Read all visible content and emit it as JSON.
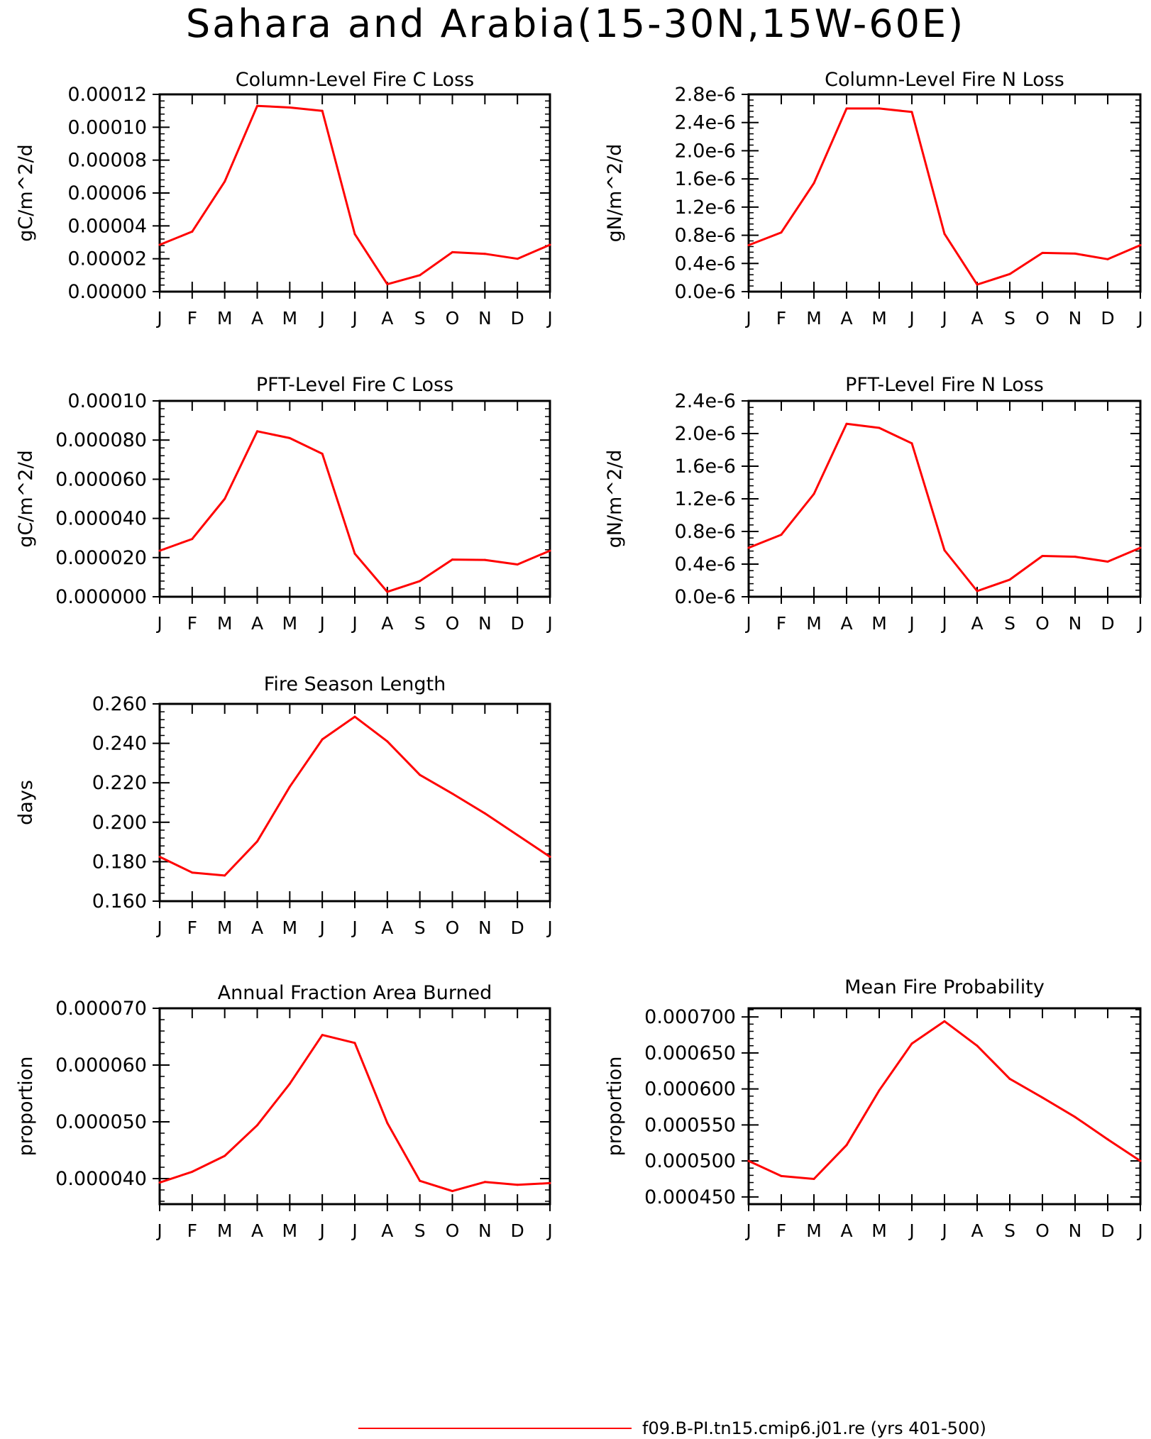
{
  "page_title": "Sahara and Arabia(15-30N,15W-60E)",
  "legend": {
    "label": "f09.B-PI.tn15.cmip6.j01.re (yrs 401-500)",
    "color": "#ff0000"
  },
  "chart_data": [
    {
      "id": "col-c",
      "type": "line",
      "title": "Column-Level Fire C Loss",
      "ylabel": "gC/m^2/d",
      "categories": [
        "J",
        "F",
        "M",
        "A",
        "M",
        "J",
        "J",
        "A",
        "S",
        "O",
        "N",
        "D",
        "J"
      ],
      "yticks": [
        "0.00000",
        "0.00002",
        "0.00004",
        "0.00006",
        "0.00008",
        "0.00010",
        "0.00012"
      ],
      "ylim": [
        0,
        0.00012
      ],
      "series": [
        {
          "values": [
            2.85e-05,
            3.65e-05,
            6.7e-05,
            0.000113,
            0.000112,
            0.00011,
            3.5e-05,
            4.5e-06,
            1e-05,
            2.4e-05,
            2.3e-05,
            2e-05,
            2.85e-05
          ]
        }
      ]
    },
    {
      "id": "col-n",
      "type": "line",
      "title": "Column-Level Fire N Loss",
      "ylabel": "gN/m^2/d",
      "categories": [
        "J",
        "F",
        "M",
        "A",
        "M",
        "J",
        "J",
        "A",
        "S",
        "O",
        "N",
        "D",
        "J"
      ],
      "yticks": [
        "0.0e-6",
        "0.4e-6",
        "0.8e-6",
        "1.2e-6",
        "1.6e-6",
        "2.0e-6",
        "2.4e-6",
        "2.8e-6"
      ],
      "ylim": [
        0,
        2.8e-06
      ],
      "series": [
        {
          "values": [
            6.6e-07,
            8.4e-07,
            1.54e-06,
            2.6e-06,
            2.6e-06,
            2.55e-06,
            8.2e-07,
            1e-07,
            2.5e-07,
            5.5e-07,
            5.4e-07,
            4.6e-07,
            6.6e-07
          ]
        }
      ]
    },
    {
      "id": "pft-c",
      "type": "line",
      "title": "PFT-Level Fire C Loss",
      "ylabel": "gC/m^2/d",
      "categories": [
        "J",
        "F",
        "M",
        "A",
        "M",
        "J",
        "J",
        "A",
        "S",
        "O",
        "N",
        "D",
        "J"
      ],
      "yticks": [
        "0.000000",
        "0.000020",
        "0.000040",
        "0.000060",
        "0.000080",
        "0.00010"
      ],
      "ylim": [
        0,
        0.0001
      ],
      "series": [
        {
          "values": [
            2.35e-05,
            2.95e-05,
            5e-05,
            8.45e-05,
            8.1e-05,
            7.3e-05,
            2.2e-05,
            2.5e-06,
            8e-06,
            1.9e-05,
            1.88e-05,
            1.65e-05,
            2.35e-05
          ]
        }
      ]
    },
    {
      "id": "pft-n",
      "type": "line",
      "title": "PFT-Level Fire N Loss",
      "ylabel": "gN/m^2/d",
      "categories": [
        "J",
        "F",
        "M",
        "A",
        "M",
        "J",
        "J",
        "A",
        "S",
        "O",
        "N",
        "D",
        "J"
      ],
      "yticks": [
        "0.0e-6",
        "0.4e-6",
        "0.8e-6",
        "1.2e-6",
        "1.6e-6",
        "2.0e-6",
        "2.4e-6"
      ],
      "ylim": [
        0,
        2.4e-06
      ],
      "series": [
        {
          "values": [
            6e-07,
            7.6e-07,
            1.26e-06,
            2.12e-06,
            2.07e-06,
            1.88e-06,
            5.7e-07,
            7e-08,
            2.1e-07,
            5e-07,
            4.9e-07,
            4.3e-07,
            6e-07
          ]
        }
      ]
    },
    {
      "id": "fsl",
      "type": "line",
      "title": "Fire Season Length",
      "ylabel": "days",
      "categories": [
        "J",
        "F",
        "M",
        "A",
        "M",
        "J",
        "J",
        "A",
        "S",
        "O",
        "N",
        "D",
        "J"
      ],
      "yticks": [
        "0.160",
        "0.180",
        "0.200",
        "0.220",
        "0.240",
        "0.260"
      ],
      "ylim": [
        0.16,
        0.26
      ],
      "series": [
        {
          "values": [
            0.1825,
            0.1745,
            0.173,
            0.1903,
            0.218,
            0.242,
            0.2535,
            0.241,
            0.224,
            0.2145,
            0.2045,
            0.1935,
            0.1825
          ]
        }
      ]
    },
    {
      "id": "afab",
      "type": "line",
      "title": "Annual Fraction Area Burned",
      "ylabel": "proportion",
      "categories": [
        "J",
        "F",
        "M",
        "A",
        "M",
        "J",
        "J",
        "A",
        "S",
        "O",
        "N",
        "D",
        "J"
      ],
      "yticks": [
        "0.000040",
        "0.000050",
        "0.000060",
        "0.000070"
      ],
      "ylim": [
        3.55e-05,
        7e-05
      ],
      "series": [
        {
          "values": [
            3.93e-05,
            4.12e-05,
            4.4e-05,
            4.94e-05,
            5.67e-05,
            6.53e-05,
            6.39e-05,
            4.98e-05,
            3.96e-05,
            3.78e-05,
            3.94e-05,
            3.89e-05,
            3.92e-05
          ]
        }
      ]
    },
    {
      "id": "mfp",
      "type": "line",
      "title": "Mean Fire Probability",
      "ylabel": "proportion",
      "categories": [
        "J",
        "F",
        "M",
        "A",
        "M",
        "J",
        "J",
        "A",
        "S",
        "O",
        "N",
        "D",
        "J"
      ],
      "yticks": [
        "0.000450",
        "0.000500",
        "0.000550",
        "0.000600",
        "0.000650",
        "0.000700"
      ],
      "ylim": [
        0.00044,
        0.000712
      ],
      "series": [
        {
          "values": [
            0.0005,
            0.000479,
            0.000475,
            0.000522,
            0.000598,
            0.000663,
            0.000694,
            0.00066,
            0.000614,
            0.000588,
            0.000561,
            0.00053,
            0.0005
          ]
        }
      ]
    }
  ]
}
